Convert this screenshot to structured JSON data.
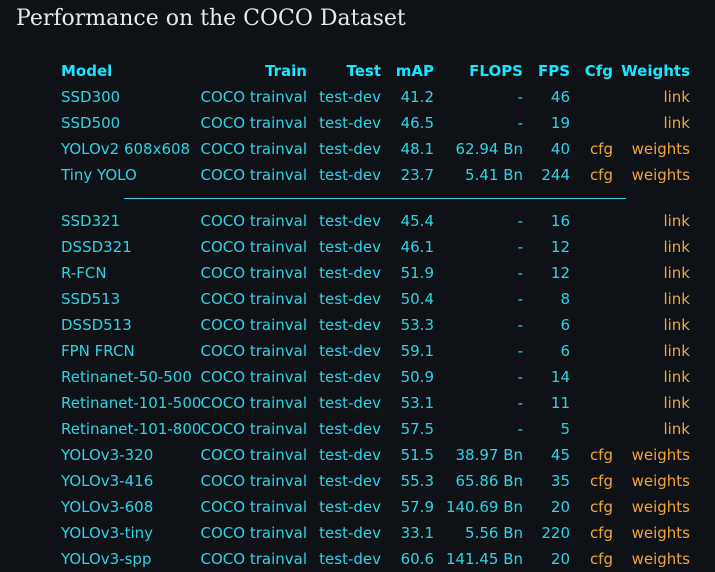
{
  "title": "Performance on the COCO Dataset",
  "table": {
    "header": {
      "model": "Model",
      "train": "Train",
      "test": "Test",
      "map": "mAP",
      "flops": "FLOPS",
      "fps": "FPS",
      "cfg": "Cfg",
      "weights": "Weights"
    },
    "groups": [
      [
        {
          "model": "SSD300",
          "train": "COCO trainval",
          "test": "test-dev",
          "map": "41.2",
          "flops": "-",
          "fps": "46",
          "weights": "link"
        },
        {
          "model": "SSD500",
          "train": "COCO trainval",
          "test": "test-dev",
          "map": "46.5",
          "flops": "-",
          "fps": "19",
          "weights": "link"
        },
        {
          "model": "YOLOv2 608x608",
          "train": "COCO trainval",
          "test": "test-dev",
          "map": "48.1",
          "flops": "62.94 Bn",
          "fps": "40",
          "cfg": "cfg",
          "weights": "weights"
        },
        {
          "model": "Tiny YOLO",
          "train": "COCO trainval",
          "test": "test-dev",
          "map": "23.7",
          "flops": "5.41 Bn",
          "fps": "244",
          "cfg": "cfg",
          "weights": "weights"
        }
      ],
      [
        {
          "model": "SSD321",
          "train": "COCO trainval",
          "test": "test-dev",
          "map": "45.4",
          "flops": "-",
          "fps": "16",
          "weights": "link"
        },
        {
          "model": "DSSD321",
          "train": "COCO trainval",
          "test": "test-dev",
          "map": "46.1",
          "flops": "-",
          "fps": "12",
          "weights": "link"
        },
        {
          "model": "R-FCN",
          "train": "COCO trainval",
          "test": "test-dev",
          "map": "51.9",
          "flops": "-",
          "fps": "12",
          "weights": "link"
        },
        {
          "model": "SSD513",
          "train": "COCO trainval",
          "test": "test-dev",
          "map": "50.4",
          "flops": "-",
          "fps": "8",
          "weights": "link"
        },
        {
          "model": "DSSD513",
          "train": "COCO trainval",
          "test": "test-dev",
          "map": "53.3",
          "flops": "-",
          "fps": "6",
          "weights": "link"
        },
        {
          "model": "FPN FRCN",
          "train": "COCO trainval",
          "test": "test-dev",
          "map": "59.1",
          "flops": "-",
          "fps": "6",
          "weights": "link"
        },
        {
          "model": "Retinanet-50-500",
          "train": "COCO trainval",
          "test": "test-dev",
          "map": "50.9",
          "flops": "-",
          "fps": "14",
          "weights": "link"
        },
        {
          "model": "Retinanet-101-500",
          "train": "COCO trainval",
          "test": "test-dev",
          "map": "53.1",
          "flops": "-",
          "fps": "11",
          "weights": "link"
        },
        {
          "model": "Retinanet-101-800",
          "train": "COCO trainval",
          "test": "test-dev",
          "map": "57.5",
          "flops": "-",
          "fps": "5",
          "weights": "link"
        },
        {
          "model": "YOLOv3-320",
          "train": "COCO trainval",
          "test": "test-dev",
          "map": "51.5",
          "flops": "38.97 Bn",
          "fps": "45",
          "cfg": "cfg",
          "weights": "weights"
        },
        {
          "model": "YOLOv3-416",
          "train": "COCO trainval",
          "test": "test-dev",
          "map": "55.3",
          "flops": "65.86 Bn",
          "fps": "35",
          "cfg": "cfg",
          "weights": "weights"
        },
        {
          "model": "YOLOv3-608",
          "train": "COCO trainval",
          "test": "test-dev",
          "map": "57.9",
          "flops": "140.69 Bn",
          "fps": "20",
          "cfg": "cfg",
          "weights": "weights"
        },
        {
          "model": "YOLOv3-tiny",
          "train": "COCO trainval",
          "test": "test-dev",
          "map": "33.1",
          "flops": "5.56 Bn",
          "fps": "220",
          "cfg": "cfg",
          "weights": "weights"
        },
        {
          "model": "YOLOv3-spp",
          "train": "COCO trainval",
          "test": "test-dev",
          "map": "60.6",
          "flops": "141.45 Bn",
          "fps": "20",
          "cfg": "cfg",
          "weights": "weights"
        }
      ]
    ]
  }
}
